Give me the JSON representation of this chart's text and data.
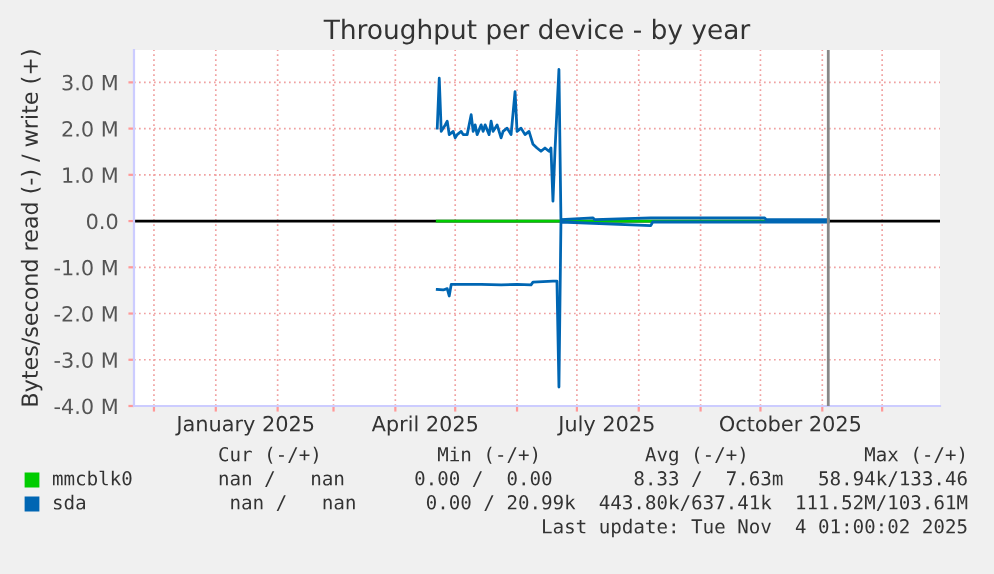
{
  "chart_data": {
    "type": "line",
    "title": "Throughput per device - by year",
    "ylabel": "Bytes/second read (-) / write (+)",
    "xlim": [
      "2024-11-21",
      "2025-12-30"
    ],
    "ylim": [
      -4,
      3.7
    ],
    "yticks": [
      {
        "value": -4,
        "label": "-4.0 M"
      },
      {
        "value": -3,
        "label": "-3.0 M"
      },
      {
        "value": -2,
        "label": "-2.0 M"
      },
      {
        "value": -1,
        "label": "-1.0 M"
      },
      {
        "value": 0,
        "label": "0.0"
      },
      {
        "value": 1,
        "label": "1.0 M"
      },
      {
        "value": 2,
        "label": "2.0 M"
      },
      {
        "value": 3,
        "label": "3.0 M"
      }
    ],
    "xticks": [
      {
        "value": "2024-12-01",
        "label": null
      },
      {
        "value": "2025-01-01",
        "label": null
      },
      {
        "value": "2025-01-16",
        "label": "January 2025"
      },
      {
        "value": "2025-02-01",
        "label": null
      },
      {
        "value": "2025-03-01",
        "label": null
      },
      {
        "value": "2025-04-01",
        "label": null
      },
      {
        "value": "2025-04-16",
        "label": "April 2025"
      },
      {
        "value": "2025-05-01",
        "label": null
      },
      {
        "value": "2025-06-01",
        "label": null
      },
      {
        "value": "2025-07-01",
        "label": null
      },
      {
        "value": "2025-07-16",
        "label": "July 2025"
      },
      {
        "value": "2025-08-01",
        "label": null
      },
      {
        "value": "2025-09-01",
        "label": null
      },
      {
        "value": "2025-10-01",
        "label": null
      },
      {
        "value": "2025-10-16",
        "label": "October 2025"
      },
      {
        "value": "2025-11-01",
        "label": null
      },
      {
        "value": "2025-12-01",
        "label": null
      }
    ],
    "grid": true,
    "legend": "bottom left",
    "ref_lines": [
      {
        "axis": "y",
        "value": 0,
        "color": "#000000"
      },
      {
        "axis": "x",
        "value": "2025-11-04",
        "color": "#888888"
      }
    ],
    "series": [
      {
        "name": "mmcblk0",
        "color": "#00cc00",
        "x": [
          "2025-04-22",
          "2025-11-04"
        ],
        "values": [
          0,
          0
        ]
      },
      {
        "name": "sda",
        "color": "#0066b3",
        "x": [
          "2025-04-22",
          "2025-04-23",
          "2025-04-24",
          "2025-04-26",
          "2025-04-27",
          "2025-04-28",
          "2025-04-30",
          "2025-05-01",
          "2025-05-02",
          "2025-05-04",
          "2025-05-05",
          "2025-05-07",
          "2025-05-09",
          "2025-05-10",
          "2025-05-11",
          "2025-05-12",
          "2025-05-14",
          "2025-05-15",
          "2025-05-16",
          "2025-05-18",
          "2025-05-19",
          "2025-05-20",
          "2025-05-22",
          "2025-05-24",
          "2025-05-25",
          "2025-05-27",
          "2025-05-29",
          "2025-05-31",
          "2025-06-01",
          "2025-06-03",
          "2025-06-05",
          "2025-06-07",
          "2025-06-09",
          "2025-06-11",
          "2025-06-13",
          "2025-06-15",
          "2025-06-17",
          "2025-06-18",
          "2025-06-19",
          "2025-06-20",
          "2025-06-22",
          "2025-06-23",
          "2025-07-09",
          "2025-07-10",
          "2025-08-07",
          "2025-10-03",
          "2025-10-04",
          "2025-11-04"
        ],
        "values": [
          2.01,
          3.09,
          1.94,
          2.08,
          2.16,
          1.87,
          1.94,
          1.8,
          1.87,
          1.94,
          1.87,
          1.87,
          2.3,
          1.94,
          2.08,
          1.87,
          2.08,
          1.94,
          2.08,
          1.87,
          2.16,
          1.94,
          2.08,
          1.8,
          1.94,
          2.01,
          1.87,
          2.8,
          1.94,
          2.01,
          1.87,
          1.94,
          1.66,
          1.58,
          1.51,
          1.58,
          1.51,
          1.58,
          0.43,
          1.51,
          3.28,
          0.03,
          0.07,
          0.03,
          0.07,
          0.07,
          0.03,
          0.03
        ]
      },
      {
        "color": "#0066b3",
        "x": [
          "2025-04-22",
          "2025-04-25",
          "2025-04-27",
          "2025-04-28",
          "2025-04-29",
          "2025-04-30",
          "2025-05-14",
          "2025-05-24",
          "2025-06-01",
          "2025-06-08",
          "2025-06-09",
          "2025-06-19",
          "2025-06-21",
          "2025-06-22",
          "2025-06-23",
          "2025-08-07",
          "2025-08-08",
          "2025-11-04"
        ],
        "values": [
          -1.48,
          -1.49,
          -1.46,
          -1.62,
          -1.37,
          -1.37,
          -1.37,
          -1.38,
          -1.37,
          -1.38,
          -1.32,
          -1.3,
          -1.3,
          -3.59,
          -0.02,
          -0.1,
          -0.02,
          -0.02
        ]
      }
    ],
    "annotations": [
      "Cur (-/+)          Min (-/+)         Avg (-/+)          Max (-/+)",
      "nan /   nan      0.00 /  0.00       8.33 /  7.63m   58.94k/133.46",
      "nan /   nan      0.00 / 20.99k  443.80k/637.41k  111.52M/103.61M",
      "Last update: Tue Nov  4 01:00:02 2025"
    ]
  }
}
